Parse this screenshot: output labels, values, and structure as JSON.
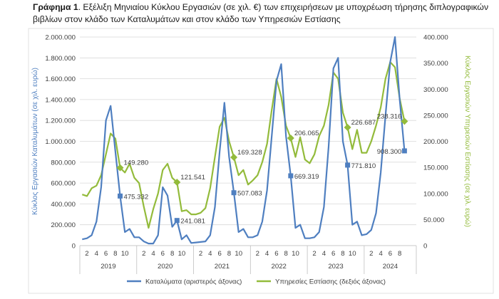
{
  "figure": {
    "label": "Γράφημα 1",
    "caption": ". Εξέλιξη Μηνιαίου Κύκλου Εργασιών (σε χιλ. €) των επιχειρήσεων με υποχρέωση τήρησης διπλογραφικών βιβλίων στον κλάδο των Καταλυμάτων και στον κλάδο των Υπηρεσιών Εστίασης"
  },
  "chart_data": {
    "type": "line",
    "colors": {
      "accommodation": "#4f7fc0",
      "food": "#93bb3b",
      "grid": "#d9d9d9"
    },
    "ylabel_left": "Κύκλος Εργασιών Καταλυμάτων (σε χιλ. ευρώ)",
    "ylabel_right": "Κύκλος Εργασιών Υπηρεσιών Εστίασης (σε χιλ. ευρώ)",
    "ylim_left": [
      0,
      2000000
    ],
    "ylim_right": [
      0,
      400000
    ],
    "yticks_left": [
      "0",
      "200.000",
      "400.000",
      "600.000",
      "800.000",
      "1.000.000",
      "1.200.000",
      "1.400.000",
      "1.600.000",
      "1.800.000",
      "2.000.000"
    ],
    "yticks_right": [
      "0",
      "50.000",
      "100.000",
      "150.000",
      "200.000",
      "250.000",
      "300.000",
      "350.000",
      "400.000"
    ],
    "years": [
      "2019",
      "2020",
      "2021",
      "2022",
      "2023",
      "2024"
    ],
    "month_ticks": [
      "2",
      "4",
      "6",
      "8",
      "10"
    ],
    "grid": true,
    "legend_position": "bottom",
    "series": [
      {
        "name": "Καταλύματα (αριστερός άξονας)",
        "axis": "left",
        "values": [
          60000,
          70000,
          100000,
          230000,
          560000,
          1200000,
          1340000,
          900000,
          475332,
          130000,
          160000,
          80000,
          80000,
          40000,
          20000,
          20000,
          100000,
          560000,
          480000,
          180000,
          241081,
          60000,
          100000,
          25000,
          30000,
          35000,
          40000,
          100000,
          370000,
          900000,
          1370000,
          850000,
          507083,
          130000,
          160000,
          80000,
          80000,
          100000,
          230000,
          530000,
          1050000,
          1580000,
          1740000,
          1050000,
          669319,
          170000,
          200000,
          70000,
          70000,
          80000,
          130000,
          370000,
          950000,
          1700000,
          1800000,
          1000000,
          771810,
          200000,
          230000,
          100000,
          110000,
          150000,
          310000,
          700000,
          1250000,
          1760000,
          2000000,
          1400000,
          908300
        ]
      },
      {
        "name": "Υπηρεσίες Εστίασης (δεξιός άξονας)",
        "axis": "right",
        "values": [
          98000,
          95000,
          110000,
          115000,
          135000,
          175000,
          215000,
          205000,
          149280,
          140000,
          157000,
          130000,
          120000,
          75000,
          34000,
          70000,
          100000,
          145000,
          157000,
          130000,
          121541,
          66000,
          68000,
          60000,
          60000,
          63000,
          72000,
          110000,
          170000,
          228000,
          245000,
          200000,
          169328,
          135000,
          145000,
          117000,
          125000,
          135000,
          160000,
          195000,
          260000,
          320000,
          285000,
          230000,
          206065,
          170000,
          208000,
          165000,
          158000,
          175000,
          210000,
          230000,
          270000,
          332000,
          320000,
          255000,
          226687,
          185000,
          222000,
          178000,
          178000,
          200000,
          230000,
          265000,
          320000,
          352000,
          342000,
          282000,
          238316
        ]
      }
    ],
    "annotations": {
      "accommodation": [
        "475.332",
        "241.081",
        "507.083",
        "669.319",
        "771.810",
        "908.300"
      ],
      "food": [
        "149.280",
        "121.541",
        "169.328",
        "206.065",
        "226.687",
        "238.316"
      ]
    }
  }
}
